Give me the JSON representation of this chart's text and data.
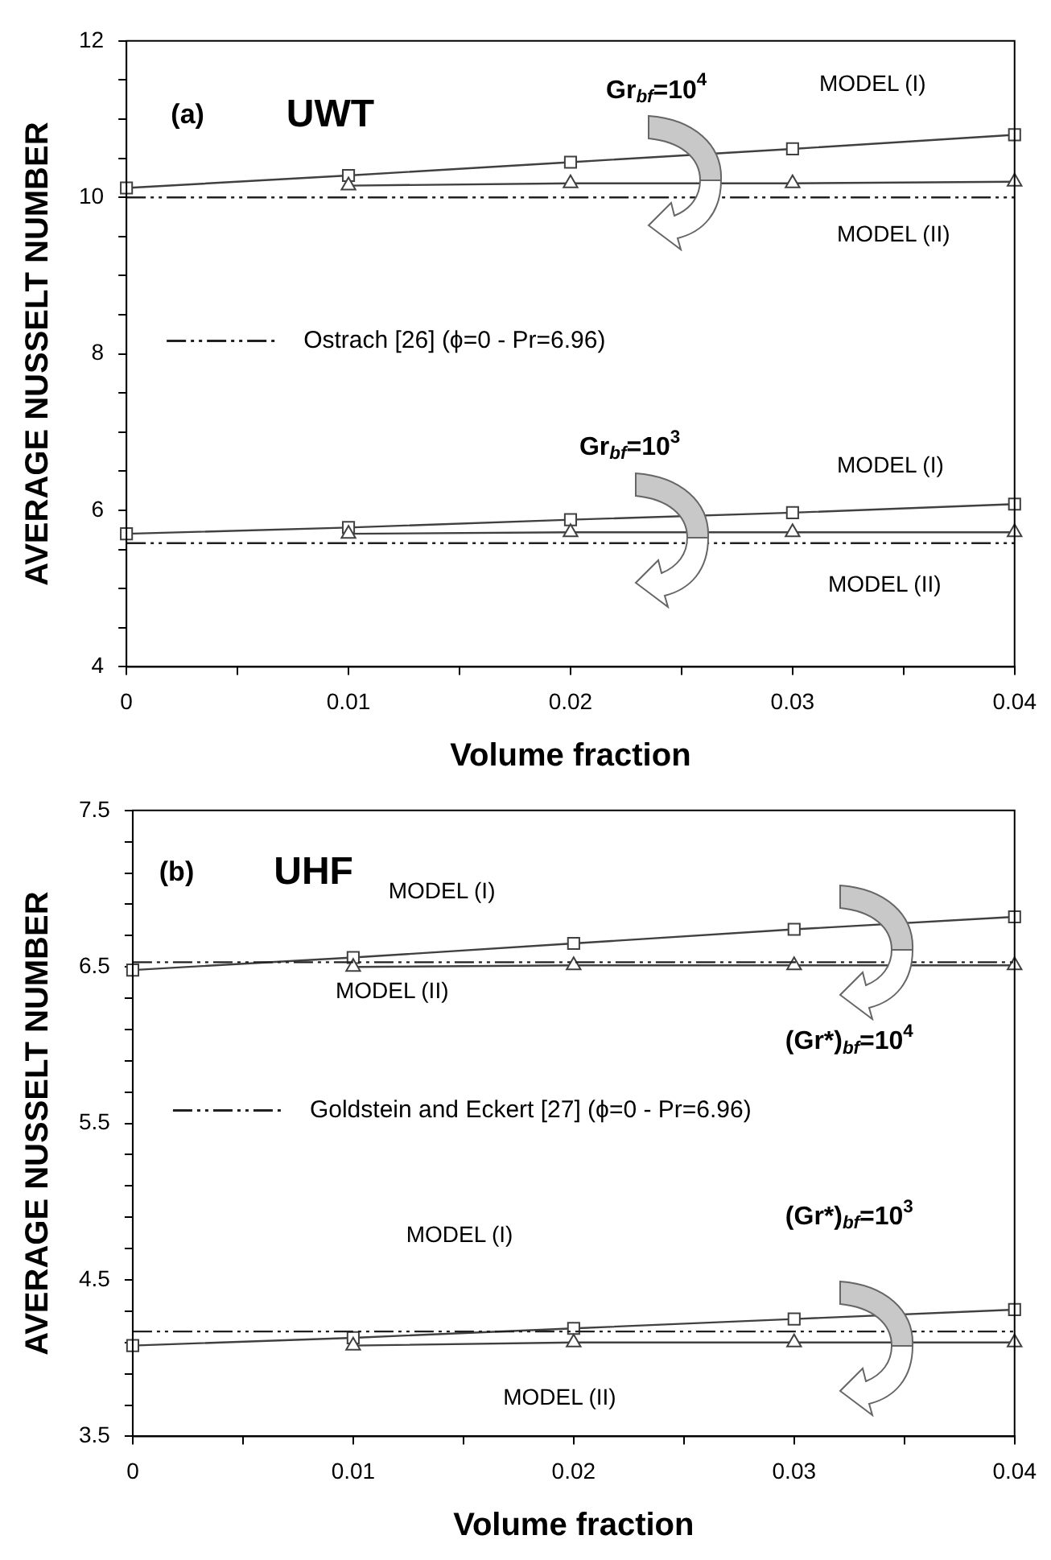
{
  "chart_data": [
    {
      "type": "line",
      "xlabel": "Volume fraction",
      "ylabel": "AVERAGE NUSSELT NUMBER",
      "x": [
        0,
        0.01,
        0.02,
        0.03,
        0.04
      ],
      "xlim": [
        0,
        0.04
      ],
      "xticks": [
        0,
        {
          "value": 0.005,
          "label": null
        },
        0.01,
        {
          "value": 0.015,
          "label": null
        },
        0.02,
        {
          "value": 0.025,
          "label": null
        },
        0.03,
        {
          "value": 0.035,
          "label": null
        },
        0.04
      ],
      "ylim": [
        4,
        12
      ],
      "yticks": [
        4,
        {
          "value": 4.5,
          "label": null
        },
        {
          "value": 5,
          "label": null
        },
        {
          "value": 5.5,
          "label": null
        },
        6,
        {
          "value": 6.5,
          "label": null
        },
        {
          "value": 7,
          "label": null
        },
        {
          "value": 7.5,
          "label": null
        },
        8,
        {
          "value": 8.5,
          "label": null
        },
        {
          "value": 9,
          "label": null
        },
        {
          "value": 9.5,
          "label": null
        },
        10,
        {
          "value": 10.5,
          "label": null
        },
        {
          "value": 11,
          "label": null
        },
        {
          "value": 11.5,
          "label": null
        },
        12
      ],
      "grid": false,
      "legend": "left",
      "series": [
        {
          "color": "#404040",
          "marker": "square",
          "line_style": "solid",
          "values": [
            10.12,
            10.28,
            10.45,
            10.62,
            10.8
          ]
        },
        {
          "color": "#404040",
          "marker": "triangle",
          "line_style": "solid",
          "values": [
            null,
            10.15,
            10.18,
            10.18,
            10.2
          ]
        },
        {
          "color": "#404040",
          "marker": "square",
          "line_style": "solid",
          "values": [
            5.7,
            5.78,
            5.88,
            5.97,
            6.08
          ]
        },
        {
          "color": "#404040",
          "marker": "triangle",
          "line_style": "solid",
          "values": [
            null,
            5.7,
            5.72,
            5.72,
            5.72
          ]
        },
        {
          "name": "Ostrach [26] (ϕ=0 - Pr=6.96)",
          "color": "#202020",
          "marker": "none",
          "line_style": "dashed",
          "values": [
            10,
            10,
            10,
            10,
            10
          ]
        },
        {
          "color": "#202020",
          "marker": "none",
          "line_style": "dashed",
          "values": [
            5.58,
            5.58,
            5.58,
            5.58,
            5.58
          ]
        }
      ],
      "annotations": [
        "(a)",
        "UWT",
        "Gr$_{bf}$=10$^{4}$",
        "MODEL (I)",
        "MODEL (II)",
        "Gr$_{bf}$=10$^{3}$",
        "MODEL (I)",
        "MODEL (II)"
      ]
    },
    {
      "type": "line",
      "xlabel": "Volume fraction",
      "ylabel": "AVERAGE NUSSELT NUMBER",
      "x": [
        0,
        0.01,
        0.02,
        0.03,
        0.04
      ],
      "xlim": [
        0,
        0.04
      ],
      "xticks": [
        0,
        {
          "value": 0.005,
          "label": null
        },
        0.01,
        {
          "value": 0.015,
          "label": null
        },
        0.02,
        {
          "value": 0.025,
          "label": null
        },
        0.03,
        {
          "value": 0.035,
          "label": null
        },
        0.04
      ],
      "ylim": [
        3.5,
        7.5
      ],
      "yticks": [
        3.5,
        {
          "value": 3.7,
          "label": null
        },
        {
          "value": 3.9,
          "label": null
        },
        {
          "value": 4.1,
          "label": null
        },
        {
          "value": 4.3,
          "label": null
        },
        4.5,
        {
          "value": 4.7,
          "label": null
        },
        {
          "value": 4.9,
          "label": null
        },
        {
          "value": 5.1,
          "label": null
        },
        {
          "value": 5.3,
          "label": null
        },
        5.5,
        {
          "value": 5.7,
          "label": null
        },
        {
          "value": 5.9,
          "label": null
        },
        {
          "value": 6.1,
          "label": null
        },
        {
          "value": 6.3,
          "label": null
        },
        6.5,
        {
          "value": 6.7,
          "label": null
        },
        {
          "value": 6.9,
          "label": null
        },
        {
          "value": 7.1,
          "label": null
        },
        {
          "value": 7.3,
          "label": null
        },
        7.5
      ],
      "grid": false,
      "legend": "left",
      "series": [
        {
          "color": "#404040",
          "marker": "square",
          "line_style": "solid",
          "values": [
            6.48,
            6.56,
            6.65,
            6.74,
            6.82
          ]
        },
        {
          "color": "#404040",
          "marker": "triangle",
          "line_style": "solid",
          "values": [
            null,
            6.5,
            6.51,
            6.51,
            6.51
          ]
        },
        {
          "color": "#404040",
          "marker": "square",
          "line_style": "solid",
          "values": [
            4.08,
            4.13,
            4.19,
            4.25,
            4.31
          ]
        },
        {
          "color": "#404040",
          "marker": "triangle",
          "line_style": "solid",
          "values": [
            null,
            4.08,
            4.1,
            4.1,
            4.1
          ]
        },
        {
          "name": "Goldstein and Eckert [27] (ϕ=0 - Pr=6.96)",
          "color": "#202020",
          "marker": "none",
          "line_style": "dashed",
          "values": [
            6.53,
            6.53,
            6.53,
            6.53,
            6.53
          ]
        },
        {
          "color": "#202020",
          "marker": "none",
          "line_style": "dashed",
          "values": [
            4.17,
            4.17,
            4.17,
            4.17,
            4.17
          ]
        }
      ],
      "annotations": [
        "(b)",
        "UHF",
        "MODEL (I)",
        "MODEL (II)",
        "(Gr*)$_{bf}$=10$^{4}$",
        "(Gr*)$_{bf}$=10$^{3}$",
        "MODEL (I)",
        "MODEL (II)"
      ]
    }
  ]
}
